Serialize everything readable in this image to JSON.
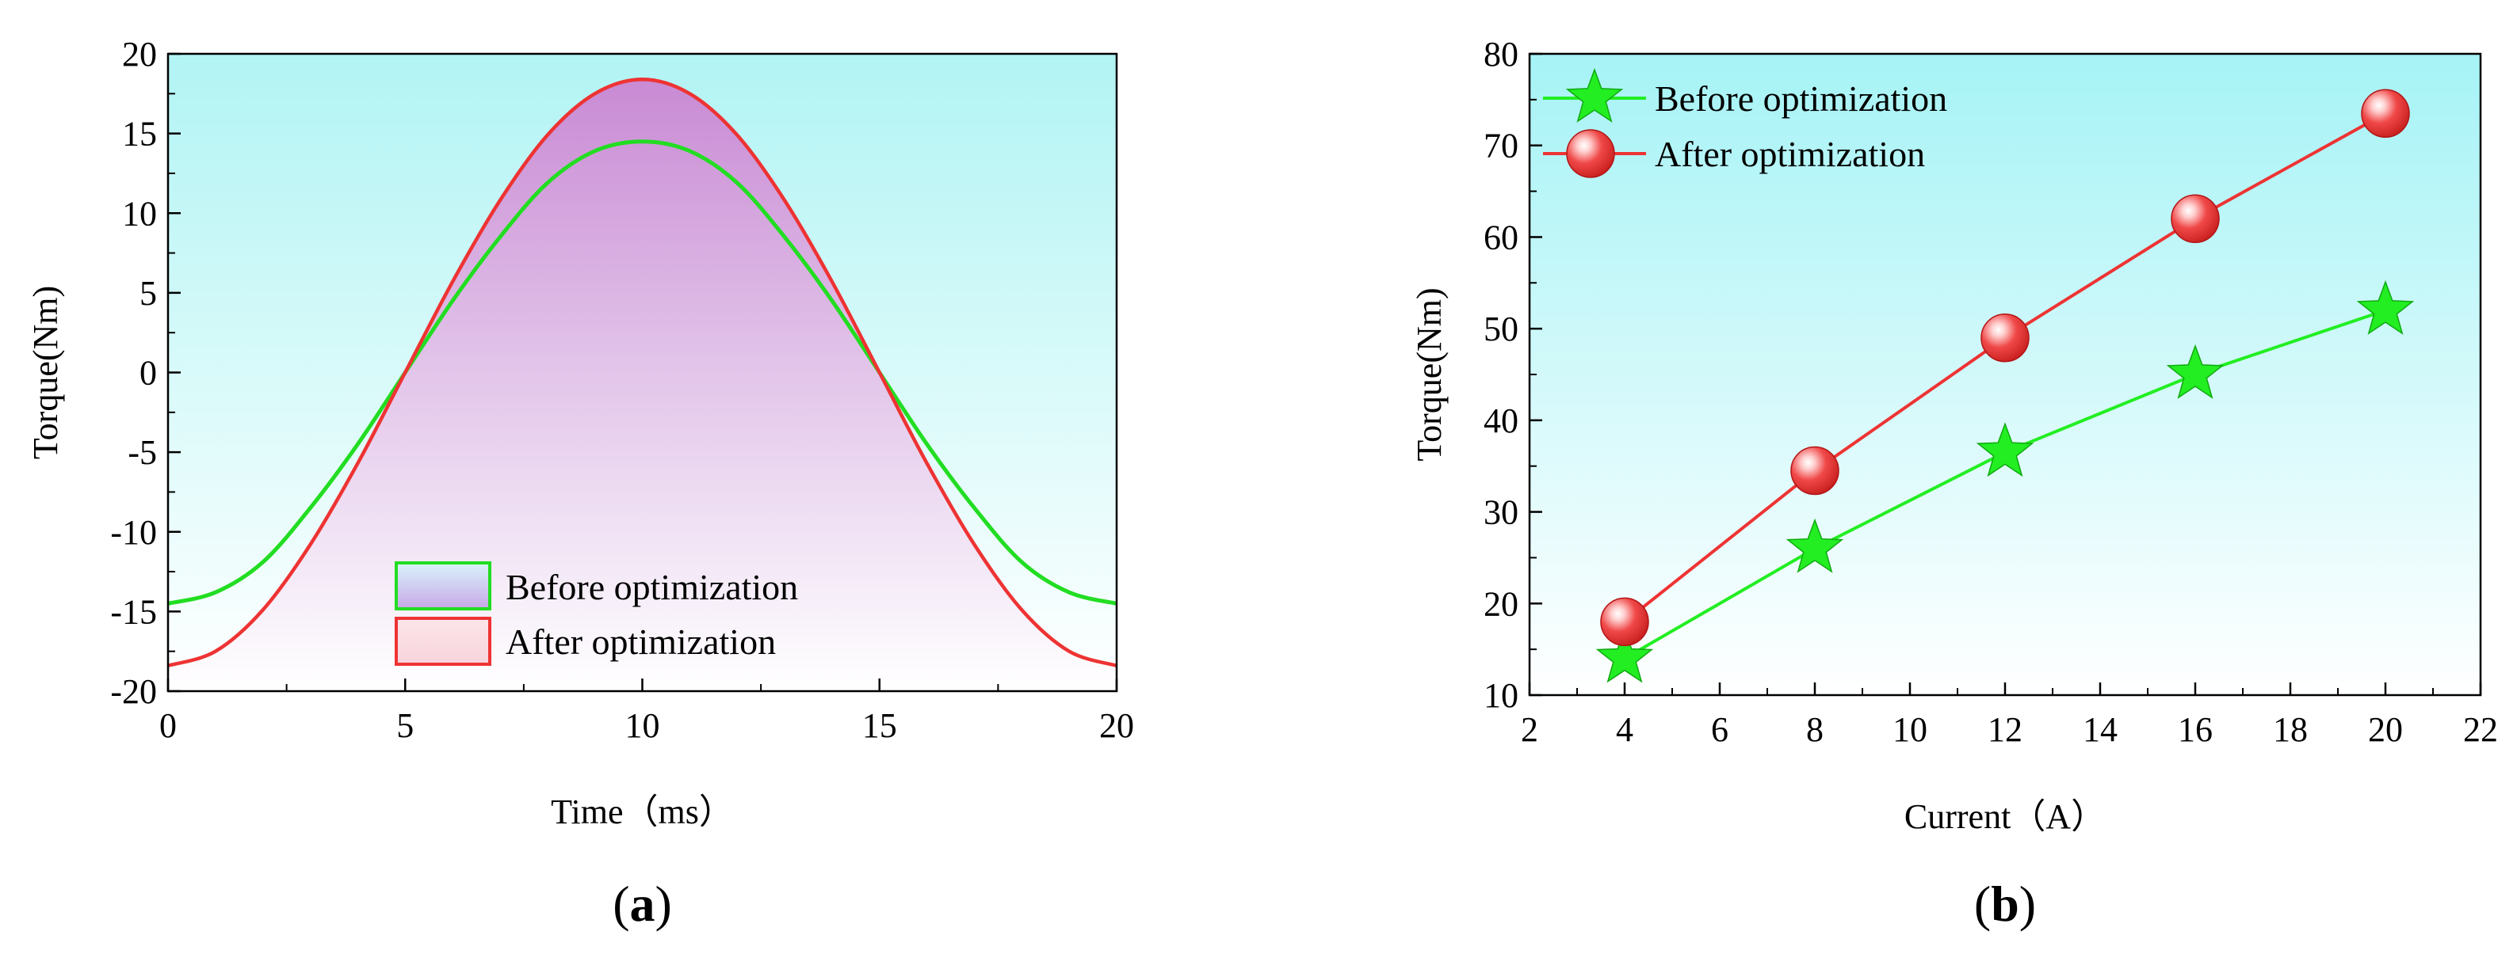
{
  "chart_data": [
    {
      "type": "area",
      "panel_label": "a",
      "xlabel": "Time（ms）",
      "ylabel": "Torque(Nm)",
      "xlim": [
        0,
        20
      ],
      "ylim": [
        -20,
        20
      ],
      "xticks": [
        0,
        5,
        10,
        15,
        20
      ],
      "yticks": [
        -20,
        -15,
        -10,
        -5,
        0,
        5,
        10,
        15,
        20
      ],
      "legend_position": "bottom-center",
      "series": [
        {
          "name": "Before optimization",
          "color": "#22dd22",
          "x": [
            0,
            1,
            2,
            3,
            4,
            5,
            6,
            7,
            8,
            9,
            10,
            11,
            12,
            13,
            14,
            15,
            16,
            17,
            18,
            19,
            20
          ],
          "values": [
            -14.5,
            -13.8,
            -11.9,
            -8.5,
            -4.5,
            0.0,
            4.5,
            8.5,
            11.9,
            13.9,
            14.5,
            13.9,
            11.9,
            8.5,
            4.5,
            0.0,
            -4.5,
            -8.5,
            -11.9,
            -13.8,
            -14.5
          ]
        },
        {
          "name": "After optimization",
          "color": "#ee3333",
          "x": [
            0,
            1,
            2,
            3,
            4,
            5,
            6,
            7,
            8,
            9,
            10,
            11,
            12,
            13,
            14,
            15,
            16,
            17,
            18,
            19,
            20
          ],
          "values": [
            -18.4,
            -17.5,
            -14.9,
            -10.8,
            -5.7,
            0.0,
            5.7,
            10.8,
            14.9,
            17.5,
            18.4,
            17.5,
            14.9,
            10.8,
            5.7,
            0.0,
            -5.7,
            -10.8,
            -14.9,
            -17.5,
            -18.4
          ]
        }
      ]
    },
    {
      "type": "line",
      "panel_label": "b",
      "xlabel": "Current（A）",
      "ylabel": "Torque(Nm)",
      "xlim": [
        2,
        22
      ],
      "ylim": [
        10,
        80
      ],
      "xticks": [
        2,
        4,
        6,
        8,
        10,
        12,
        14,
        16,
        18,
        20,
        22
      ],
      "yticks": [
        10,
        20,
        30,
        40,
        50,
        60,
        70,
        80
      ],
      "legend_position": "top-left",
      "x": [
        4,
        8,
        12,
        16,
        20
      ],
      "series": [
        {
          "name": "Before optimization",
          "marker": "star",
          "color": "#22ee22",
          "values": [
            14,
            26,
            36.5,
            45,
            52
          ]
        },
        {
          "name": "After optimization",
          "marker": "sphere",
          "color": "#ee3333",
          "values": [
            18,
            34.5,
            49,
            62,
            73.5
          ]
        }
      ]
    }
  ]
}
